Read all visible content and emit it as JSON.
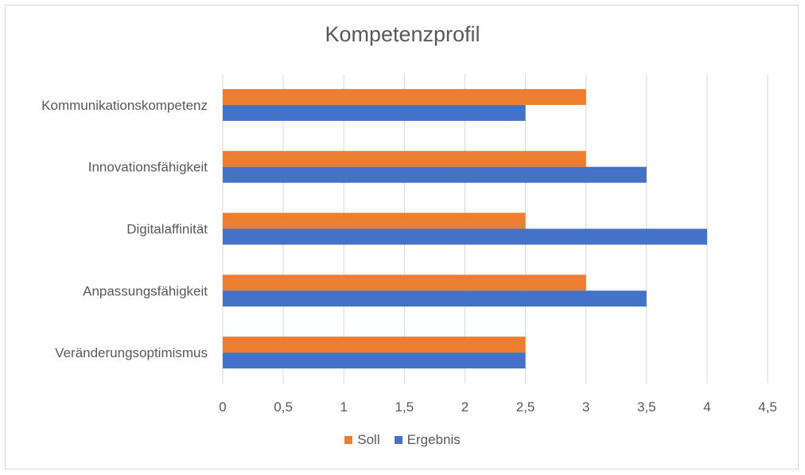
{
  "chart_data": {
    "type": "bar",
    "orientation": "horizontal",
    "title": "Kompetenzprofil",
    "categories": [
      "Kommunikationskompetenz",
      "Innovationsfähigkeit",
      "Digitalaffinität",
      "Anpassungsfähigkeit",
      "Veränderungsoptimismus"
    ],
    "series": [
      {
        "name": "Soll",
        "color": "#ed7d31",
        "values": [
          3,
          3,
          2.5,
          3,
          2.5
        ]
      },
      {
        "name": "Ergebnis",
        "color": "#4472c4",
        "values": [
          2.5,
          3.5,
          4,
          3.5,
          2.5
        ]
      }
    ],
    "xlim": [
      0,
      4.5
    ],
    "xticks": [
      "0",
      "0,5",
      "1",
      "1,5",
      "2",
      "2,5",
      "3",
      "3,5",
      "4",
      "4,5"
    ],
    "grid": true,
    "legend_position": "bottom"
  }
}
